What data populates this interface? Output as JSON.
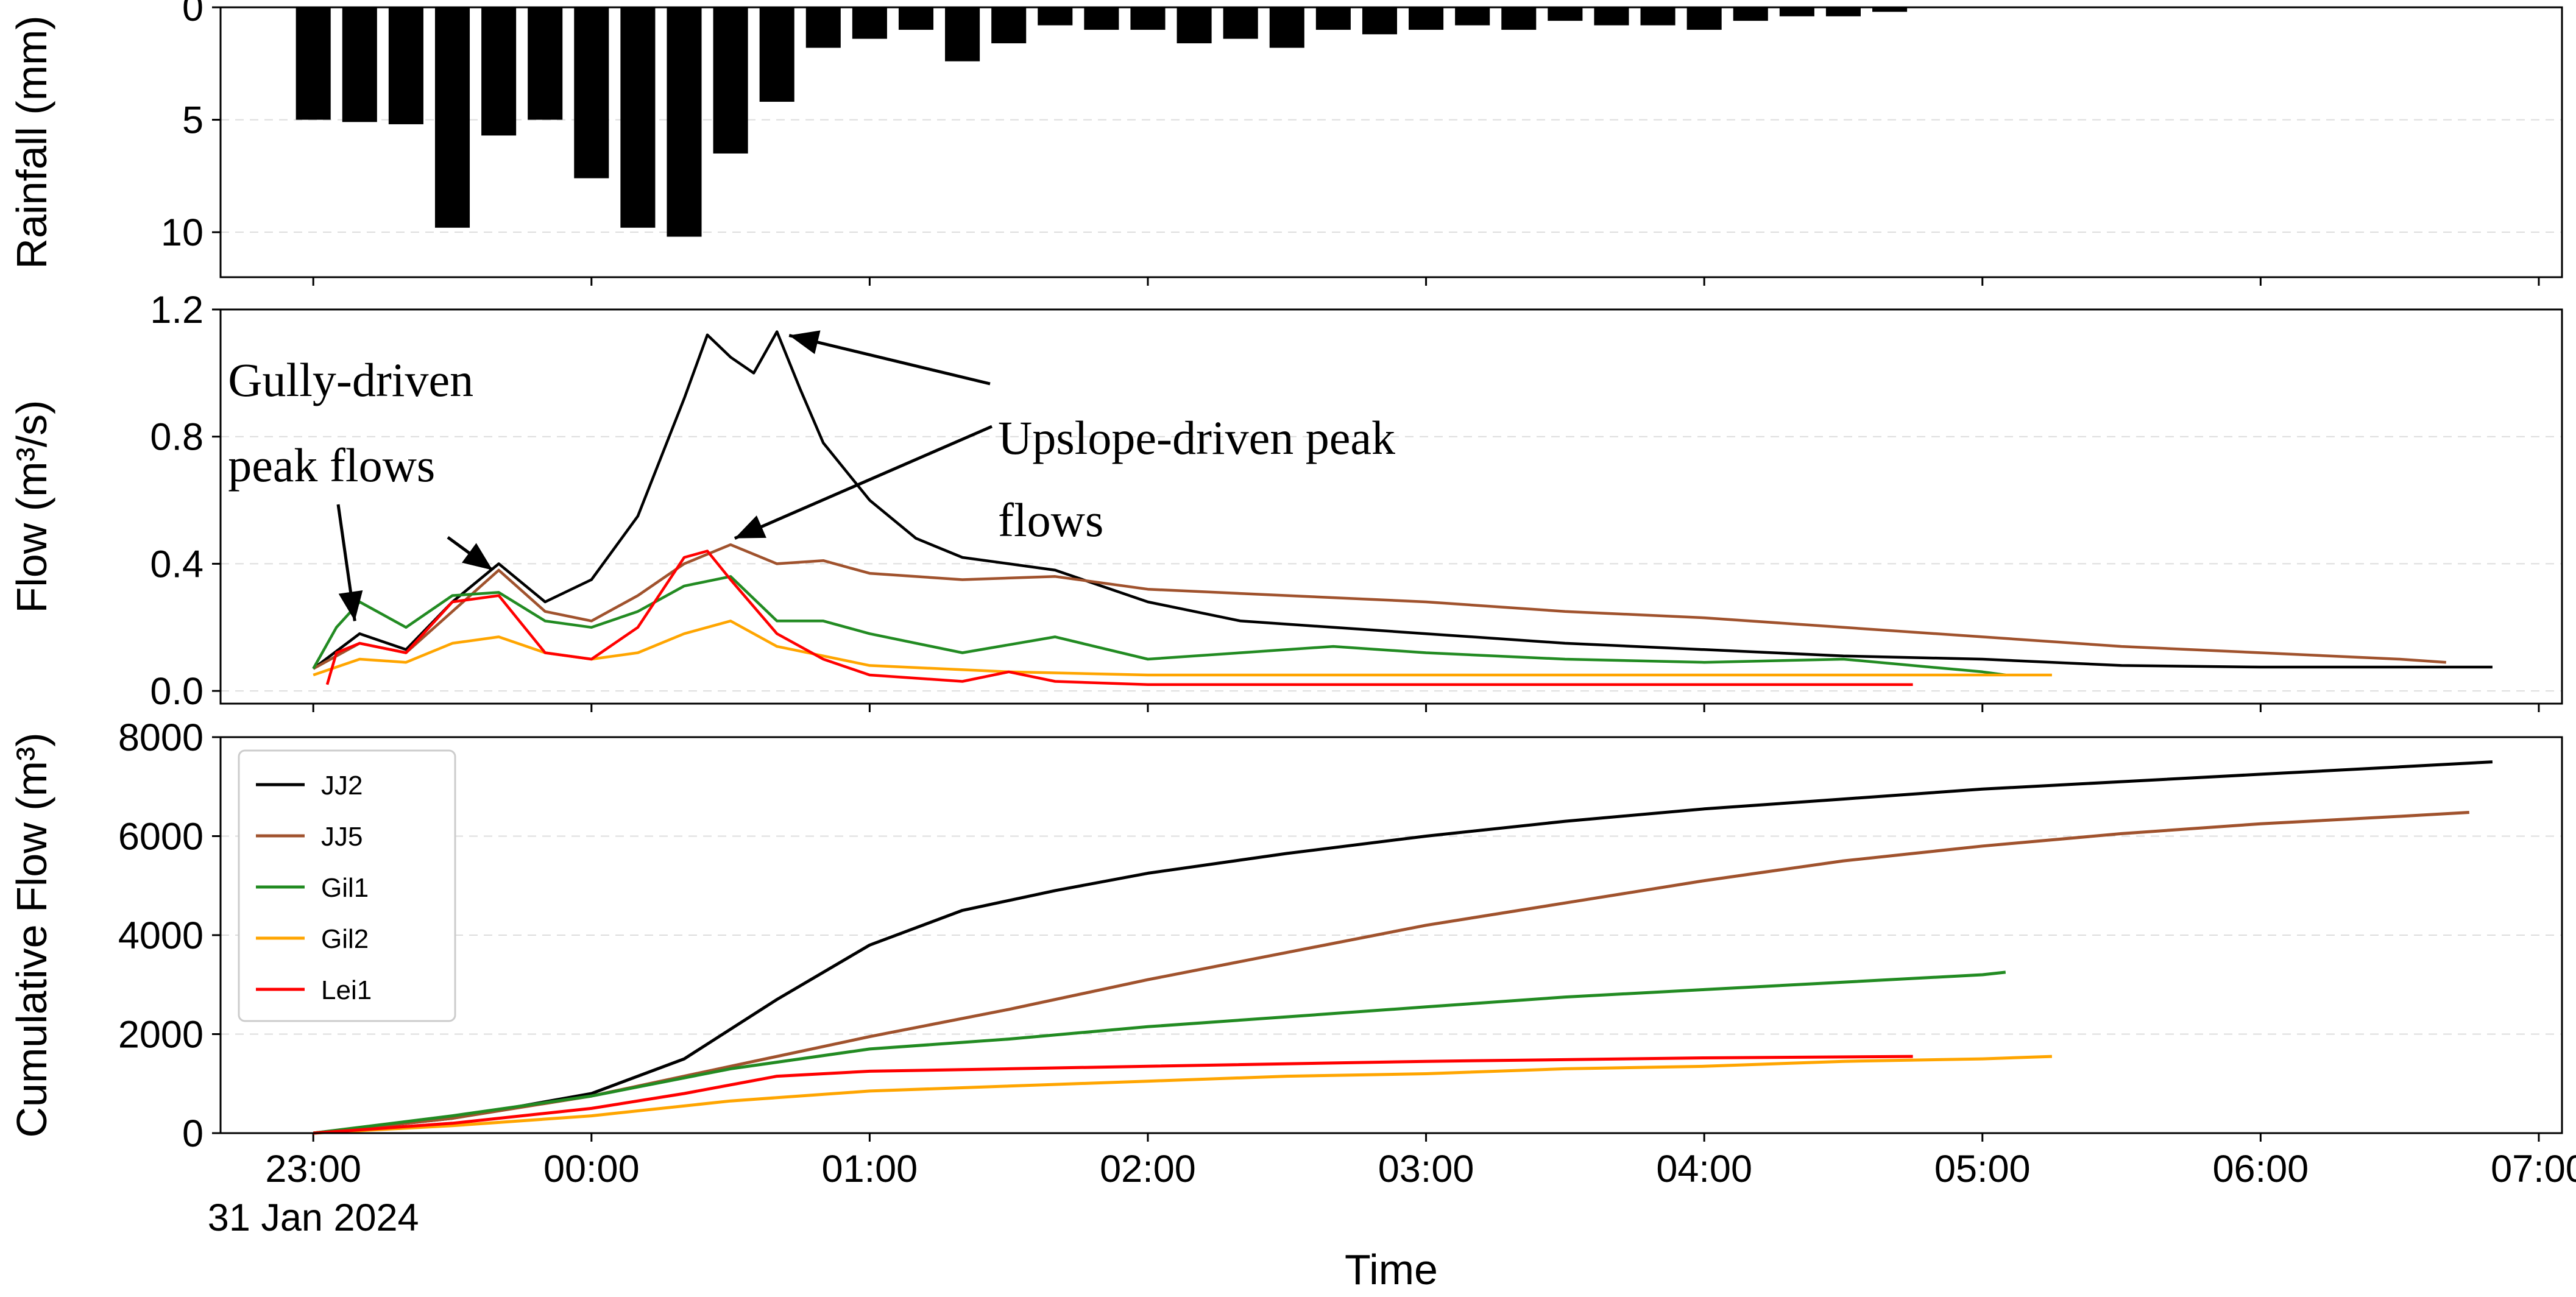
{
  "chart_data": [
    {
      "type": "bar",
      "ylabel": "Rainfall (mm)",
      "ylim": [
        0,
        12
      ],
      "y_inverted": true,
      "yticks": [
        "0",
        "5",
        "10"
      ],
      "grid": "horizontal dashed",
      "bar_color": "#000000",
      "bar_width_minutes": 7.5,
      "times": [
        "23:00",
        "23:10",
        "23:20",
        "23:30",
        "23:40",
        "23:50",
        "00:00",
        "00:10",
        "00:20",
        "00:30",
        "00:40",
        "00:50",
        "01:00",
        "01:10",
        "01:20",
        "01:30",
        "01:40",
        "01:50",
        "02:00",
        "02:10",
        "02:20",
        "02:30",
        "02:40",
        "02:50",
        "03:00",
        "03:10",
        "03:20",
        "03:30",
        "03:40",
        "03:50",
        "04:00",
        "04:10",
        "04:20",
        "04:30",
        "04:40"
      ],
      "values": [
        5.0,
        5.1,
        5.2,
        9.8,
        5.7,
        5.0,
        7.6,
        9.8,
        10.2,
        6.5,
        4.2,
        1.8,
        1.4,
        1.0,
        2.4,
        1.6,
        0.8,
        1.0,
        1.0,
        1.6,
        1.4,
        1.8,
        1.0,
        1.2,
        1.0,
        0.8,
        1.0,
        0.6,
        0.8,
        0.8,
        1.0,
        0.6,
        0.4,
        0.4,
        0.2
      ]
    },
    {
      "type": "line",
      "ylabel": "Flow (m³/s)",
      "ylim": [
        -0.04,
        1.2
      ],
      "yticks": [
        "0.0",
        "0.4",
        "0.8",
        "1.2"
      ],
      "grid": "horizontal dashed",
      "series": [
        {
          "name": "JJ2",
          "color": "#000000",
          "t": [
            "23:00",
            "23:10",
            "23:20",
            "23:30",
            "23:40",
            "23:50",
            "00:00",
            "00:10",
            "00:20",
            "00:25",
            "00:30",
            "00:35",
            "00:40",
            "00:45",
            "00:50",
            "01:00",
            "01:10",
            "01:20",
            "01:30",
            "01:40",
            "02:00",
            "02:20",
            "02:40",
            "03:00",
            "03:30",
            "04:00",
            "04:30",
            "05:00",
            "05:30",
            "06:00",
            "06:30",
            "06:50"
          ],
          "v": [
            0.07,
            0.18,
            0.13,
            0.28,
            0.4,
            0.28,
            0.35,
            0.55,
            0.92,
            1.12,
            1.05,
            1.0,
            1.13,
            0.95,
            0.78,
            0.6,
            0.48,
            0.42,
            0.4,
            0.38,
            0.28,
            0.22,
            0.2,
            0.18,
            0.15,
            0.13,
            0.11,
            0.1,
            0.08,
            0.075,
            0.075,
            0.075
          ]
        },
        {
          "name": "JJ5",
          "color": "#a0522d",
          "t": [
            "23:00",
            "23:10",
            "23:20",
            "23:30",
            "23:40",
            "23:50",
            "00:00",
            "00:10",
            "00:20",
            "00:30",
            "00:40",
            "00:50",
            "01:00",
            "01:20",
            "01:40",
            "02:00",
            "02:30",
            "03:00",
            "03:30",
            "04:00",
            "04:30",
            "05:00",
            "05:30",
            "06:00",
            "06:30",
            "06:40"
          ],
          "v": [
            0.07,
            0.15,
            0.12,
            0.25,
            0.38,
            0.25,
            0.22,
            0.3,
            0.4,
            0.46,
            0.4,
            0.41,
            0.37,
            0.35,
            0.36,
            0.32,
            0.3,
            0.28,
            0.25,
            0.23,
            0.2,
            0.17,
            0.14,
            0.12,
            0.1,
            0.09
          ]
        },
        {
          "name": "Gil1",
          "color": "#228b22",
          "t": [
            "23:00",
            "23:05",
            "23:10",
            "23:20",
            "23:30",
            "23:40",
            "23:50",
            "00:00",
            "00:10",
            "00:20",
            "00:30",
            "00:40",
            "00:50",
            "01:00",
            "01:20",
            "01:40",
            "02:00",
            "02:20",
            "02:40",
            "03:00",
            "03:30",
            "04:00",
            "04:30",
            "05:00",
            "05:05"
          ],
          "v": [
            0.07,
            0.2,
            0.28,
            0.2,
            0.3,
            0.31,
            0.22,
            0.2,
            0.25,
            0.33,
            0.36,
            0.22,
            0.22,
            0.18,
            0.12,
            0.17,
            0.1,
            0.12,
            0.14,
            0.12,
            0.1,
            0.09,
            0.1,
            0.06,
            0.05
          ]
        },
        {
          "name": "Gil2",
          "color": "#ffa500",
          "t": [
            "23:00",
            "23:10",
            "23:20",
            "23:30",
            "23:40",
            "23:50",
            "00:00",
            "00:10",
            "00:20",
            "00:30",
            "00:40",
            "00:50",
            "01:00",
            "01:30",
            "02:00",
            "03:00",
            "04:00",
            "05:00",
            "05:15"
          ],
          "v": [
            0.05,
            0.1,
            0.09,
            0.15,
            0.17,
            0.12,
            0.1,
            0.12,
            0.18,
            0.22,
            0.14,
            0.11,
            0.08,
            0.06,
            0.05,
            0.05,
            0.05,
            0.05,
            0.05
          ]
        },
        {
          "name": "Lei1",
          "color": "#ff0000",
          "t": [
            "23:03",
            "23:05",
            "23:10",
            "23:20",
            "23:30",
            "23:40",
            "23:50",
            "00:00",
            "00:10",
            "00:20",
            "00:25",
            "00:30",
            "00:40",
            "00:50",
            "01:00",
            "01:20",
            "01:30",
            "01:40",
            "02:00",
            "03:00",
            "04:00",
            "04:45"
          ],
          "v": [
            0.02,
            0.12,
            0.15,
            0.12,
            0.28,
            0.3,
            0.12,
            0.1,
            0.2,
            0.42,
            0.44,
            0.35,
            0.18,
            0.1,
            0.05,
            0.03,
            0.06,
            0.03,
            0.02,
            0.02,
            0.02,
            0.02
          ]
        }
      ],
      "annotations": [
        {
          "lines": [
            "Gully-driven",
            "peak flows"
          ]
        },
        {
          "lines": [
            "Upslope-driven peak",
            "flows"
          ]
        }
      ]
    },
    {
      "type": "line",
      "xlabel": "Time",
      "ylabel": "Cumulative Flow (m³)",
      "ylim": [
        0,
        8000
      ],
      "yticks": [
        "0",
        "2000",
        "4000",
        "6000",
        "8000"
      ],
      "xlim": [
        "22:40",
        "07:05"
      ],
      "xticks": [
        "23:00",
        "00:00",
        "01:00",
        "02:00",
        "03:00",
        "04:00",
        "05:00",
        "06:00",
        "07:00"
      ],
      "x_date_label": "31 Jan 2024",
      "grid": "horizontal dashed",
      "legend": "top-left",
      "series": [
        {
          "name": "JJ2",
          "color": "#000000",
          "t": [
            "23:00",
            "23:30",
            "00:00",
            "00:20",
            "00:40",
            "01:00",
            "01:20",
            "01:40",
            "02:00",
            "02:30",
            "03:00",
            "03:30",
            "04:00",
            "04:30",
            "05:00",
            "05:30",
            "06:00",
            "06:30",
            "06:50"
          ],
          "v": [
            0,
            300,
            800,
            1500,
            2700,
            3800,
            4500,
            4900,
            5250,
            5650,
            6000,
            6300,
            6550,
            6750,
            6950,
            7100,
            7250,
            7400,
            7500
          ]
        },
        {
          "name": "JJ5",
          "color": "#a0522d",
          "t": [
            "23:00",
            "23:30",
            "00:00",
            "00:30",
            "01:00",
            "01:30",
            "02:00",
            "02:30",
            "03:00",
            "03:30",
            "04:00",
            "04:30",
            "05:00",
            "05:30",
            "06:00",
            "06:30",
            "06:45"
          ],
          "v": [
            0,
            300,
            750,
            1350,
            1950,
            2500,
            3100,
            3650,
            4200,
            4650,
            5100,
            5500,
            5800,
            6050,
            6250,
            6400,
            6480
          ]
        },
        {
          "name": "Gil1",
          "color": "#228b22",
          "t": [
            "23:00",
            "23:30",
            "00:00",
            "00:30",
            "01:00",
            "01:30",
            "02:00",
            "02:30",
            "03:00",
            "03:30",
            "04:00",
            "04:30",
            "05:00",
            "05:05"
          ],
          "v": [
            0,
            350,
            750,
            1300,
            1700,
            1900,
            2150,
            2350,
            2550,
            2750,
            2900,
            3050,
            3200,
            3250
          ]
        },
        {
          "name": "Gil2",
          "color": "#ffa500",
          "t": [
            "23:00",
            "23:30",
            "00:00",
            "00:30",
            "01:00",
            "01:30",
            "02:00",
            "02:30",
            "03:00",
            "03:30",
            "04:00",
            "04:30",
            "05:00",
            "05:15"
          ],
          "v": [
            0,
            150,
            350,
            650,
            850,
            950,
            1050,
            1150,
            1200,
            1300,
            1350,
            1450,
            1500,
            1550
          ]
        },
        {
          "name": "Lei1",
          "color": "#ff0000",
          "t": [
            "23:00",
            "23:30",
            "00:00",
            "00:20",
            "00:40",
            "01:00",
            "01:30",
            "02:00",
            "03:00",
            "04:00",
            "04:45"
          ],
          "v": [
            0,
            200,
            500,
            800,
            1150,
            1250,
            1300,
            1350,
            1450,
            1520,
            1550
          ]
        }
      ]
    }
  ]
}
